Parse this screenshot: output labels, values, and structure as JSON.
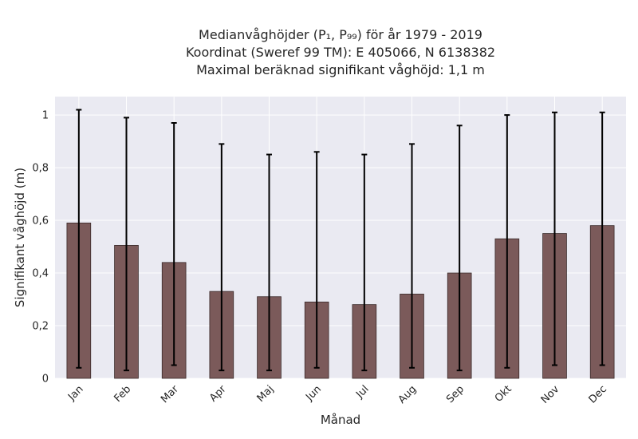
{
  "chart_data": {
    "type": "bar",
    "title_lines": [
      "Medianvåghöjder (P₁, P₉₉) för år 1979 - 2019",
      "Koordinat (Sweref 99 TM): E 405066, N 6138382",
      "Maximal beräknad signifikant våghöjd: 1,1 m"
    ],
    "xlabel": "Månad",
    "ylabel": "Signifikant våghöjd (m)",
    "categories": [
      "Jan",
      "Feb",
      "Mar",
      "Apr",
      "Maj",
      "Jun",
      "Jul",
      "Aug",
      "Sep",
      "Okt",
      "Nov",
      "Dec"
    ],
    "values": [
      0.59,
      0.505,
      0.44,
      0.33,
      0.31,
      0.29,
      0.28,
      0.32,
      0.4,
      0.53,
      0.55,
      0.58
    ],
    "p1": [
      0.04,
      0.03,
      0.05,
      0.03,
      0.03,
      0.04,
      0.03,
      0.04,
      0.03,
      0.04,
      0.05,
      0.05
    ],
    "p99": [
      1.02,
      0.99,
      0.97,
      0.89,
      0.85,
      0.86,
      0.85,
      0.89,
      0.96,
      1.0,
      1.01,
      1.01
    ],
    "ylim": [
      0,
      1.07
    ],
    "yticks": [
      0,
      0.2,
      0.4,
      0.6,
      0.8,
      1.0
    ],
    "ytick_labels": [
      "0",
      "0,2",
      "0,4",
      "0,6",
      "0,8",
      "1"
    ],
    "grid": true,
    "colors": {
      "bar": "#7b5a5a",
      "bar_edge": "#3a2a2a",
      "background": "#eaeaf2",
      "grid": "#ffffff",
      "errorbar": "#000000"
    }
  }
}
